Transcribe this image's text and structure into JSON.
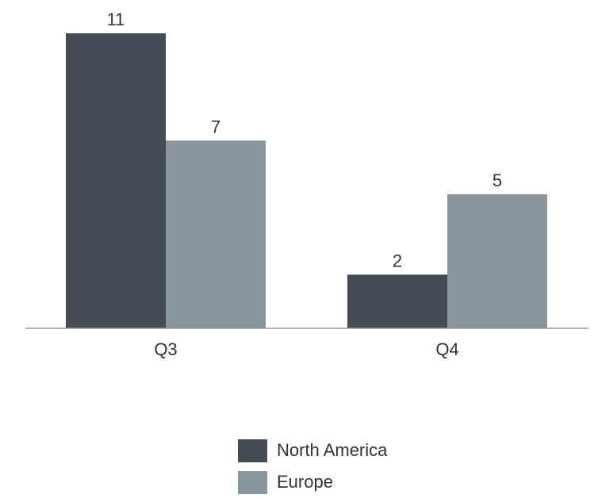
{
  "chart_data": {
    "type": "bar",
    "title": "",
    "xlabel": "",
    "ylabel": "",
    "categories": [
      "Q3",
      "Q4"
    ],
    "series": [
      {
        "name": "North America",
        "values": [
          11,
          2
        ],
        "color": "#454b54"
      },
      {
        "name": "Europe",
        "values": [
          7,
          5
        ],
        "color": "#8a969e"
      }
    ],
    "ylim": [
      0,
      11
    ],
    "grid": false,
    "legend_position": "bottom",
    "axis_color": "#999999"
  }
}
